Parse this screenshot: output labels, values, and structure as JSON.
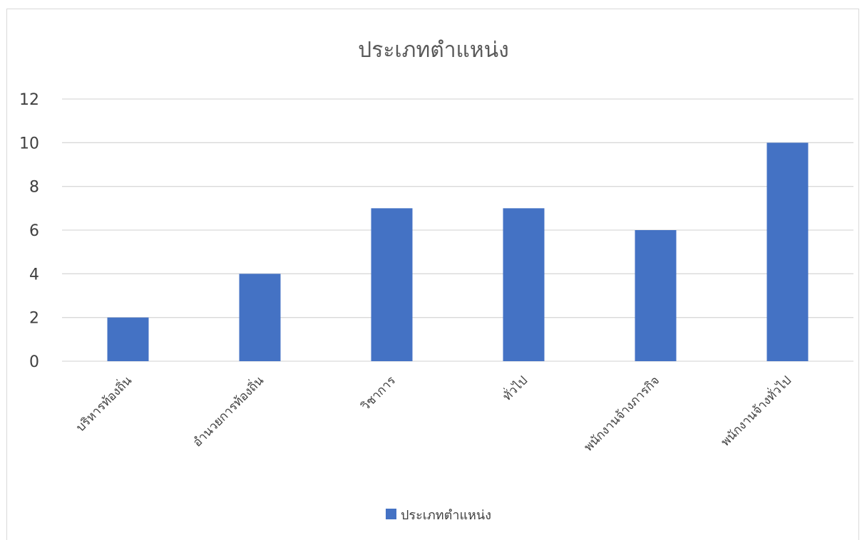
{
  "chart_data": {
    "type": "bar",
    "title": "ประเภทตำแหน่ง",
    "categories": [
      "บริหารท้องถิ่น",
      "อำนวยการท้องถิ่น",
      "วิชาการ",
      "ทั่วไป",
      "พนักงานจ้างภารกิจ",
      "พนักงานจ้างทั่วไป"
    ],
    "series": [
      {
        "name": "ประเภทตำแหน่ง",
        "values": [
          2,
          4,
          7,
          7,
          6,
          10
        ]
      }
    ],
    "ylim": [
      0,
      12
    ],
    "yticks": [
      "0",
      "2",
      "4",
      "6",
      "8",
      "10",
      "12"
    ],
    "grid": true,
    "legend_position": "bottom",
    "colors": {
      "bar": "#4472c4",
      "grid": "#d9d9d9",
      "axis": "#d9d9d9"
    }
  }
}
